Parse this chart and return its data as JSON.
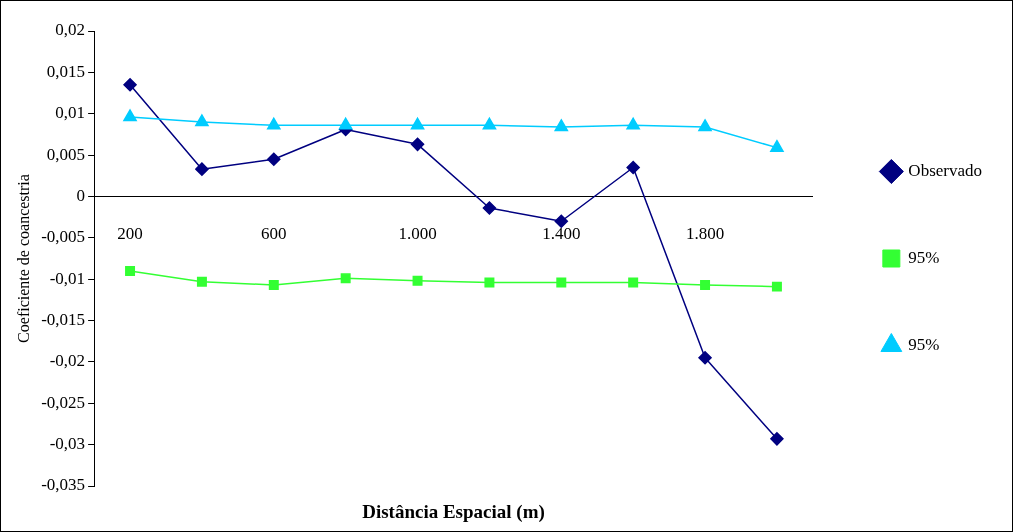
{
  "chart_data": {
    "type": "line",
    "xlabel": "Distância Espacial (m)",
    "ylabel": "Coeficiente de coancestria",
    "categories": [
      "200",
      null,
      "600",
      null,
      "1.000",
      null,
      "1.400",
      null,
      "1.800",
      null
    ],
    "series": [
      {
        "name": "Observado",
        "color": "#000080",
        "marker": "diamond",
        "values": [
          0.0135,
          0.0033,
          0.0045,
          0.0081,
          0.0063,
          -0.0014,
          -0.003,
          0.0035,
          -0.0195,
          -0.0293
        ]
      },
      {
        "name": "95%",
        "color": "#33ff33",
        "marker": "square",
        "values": [
          -0.009,
          -0.0103,
          -0.0107,
          -0.0099,
          -0.0102,
          -0.0104,
          -0.0104,
          -0.0104,
          -0.0107,
          -0.0109
        ]
      },
      {
        "name": "95%",
        "color": "#00ccff",
        "marker": "triangle",
        "values": [
          0.0096,
          0.009,
          0.0086,
          0.0086,
          0.0086,
          0.0086,
          0.0084,
          0.0086,
          0.0084,
          0.0059
        ]
      }
    ],
    "ylim": [
      -0.035,
      0.02
    ],
    "yticks": [
      {
        "value": 0.02,
        "label": "0,02"
      },
      {
        "value": 0.015,
        "label": "0,015"
      },
      {
        "value": 0.01,
        "label": "0,01"
      },
      {
        "value": 0.005,
        "label": "0,005"
      },
      {
        "value": 0,
        "label": "0"
      },
      {
        "value": -0.005,
        "label": "-0,005"
      },
      {
        "value": -0.01,
        "label": "-0,01"
      },
      {
        "value": -0.015,
        "label": "-0,015"
      },
      {
        "value": -0.02,
        "label": "-0,02"
      },
      {
        "value": -0.025,
        "label": "-0,025"
      },
      {
        "value": -0.03,
        "label": "-0,03"
      },
      {
        "value": -0.035,
        "label": "-0,035"
      }
    ],
    "grid": false,
    "legend": "right",
    "line_style": "solid"
  }
}
